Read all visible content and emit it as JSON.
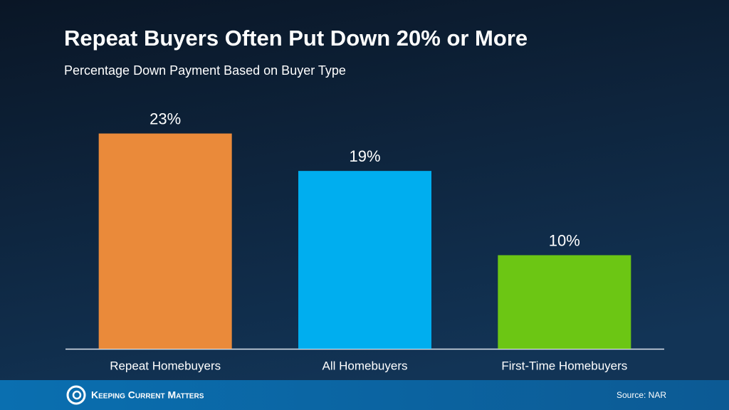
{
  "chart_data": {
    "type": "bar",
    "title": "Repeat Buyers Often Put Down 20% or More",
    "subtitle": "Percentage Down Payment Based on Buyer Type",
    "categories": [
      "Repeat Homebuyers",
      "All Homebuyers",
      "First-Time Homebuyers"
    ],
    "values": [
      23,
      19,
      10
    ],
    "value_labels": [
      "23%",
      "19%",
      "10%"
    ],
    "colors": [
      "#ea8a3a",
      "#00aeef",
      "#6cc614"
    ]
  },
  "footer": {
    "brand": "Keeping Current Matters",
    "source": "Source: NAR"
  }
}
